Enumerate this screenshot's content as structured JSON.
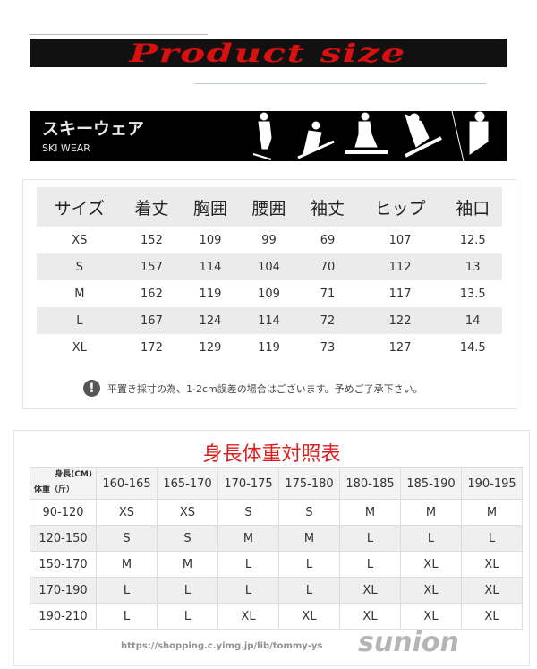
{
  "banner_title": "Product size",
  "ski_banner": {
    "jp": "スキーウェア",
    "en": "SKI WEAR"
  },
  "size_table": {
    "headers": [
      "サイズ",
      "着丈",
      "胸囲",
      "腰囲",
      "袖丈",
      "ヒップ",
      "袖口"
    ],
    "rows": [
      [
        "XS",
        "152",
        "109",
        "99",
        "69",
        "107",
        "12.5"
      ],
      [
        "S",
        "157",
        "114",
        "104",
        "70",
        "112",
        "13"
      ],
      [
        "M",
        "162",
        "119",
        "109",
        "71",
        "117",
        "13.5"
      ],
      [
        "L",
        "167",
        "124",
        "114",
        "72",
        "122",
        "14"
      ],
      [
        "XL",
        "172",
        "129",
        "119",
        "73",
        "127",
        "14.5"
      ]
    ]
  },
  "note": {
    "icon": "exclamation-icon",
    "text": "平置き採寸の為、1-2cm誤差の場合はございます。予めご了承下さい。"
  },
  "chart2": {
    "title": "身長体重対照表",
    "corner_height": "身長(CM)",
    "corner_weight": "体重（斤）",
    "height_ranges": [
      "160-165",
      "165-170",
      "170-175",
      "175-180",
      "180-185",
      "185-190",
      "190-195"
    ],
    "rows": [
      {
        "weight": "90-120",
        "sizes": [
          "XS",
          "XS",
          "S",
          "S",
          "M",
          "M",
          "M"
        ]
      },
      {
        "weight": "120-150",
        "sizes": [
          "S",
          "S",
          "M",
          "M",
          "L",
          "L",
          "L"
        ]
      },
      {
        "weight": "150-170",
        "sizes": [
          "M",
          "M",
          "L",
          "L",
          "L",
          "XL",
          "XL"
        ]
      },
      {
        "weight": "170-190",
        "sizes": [
          "L",
          "L",
          "L",
          "L",
          "XL",
          "XL",
          "XL"
        ]
      },
      {
        "weight": "190-210",
        "sizes": [
          "L",
          "L",
          "XL",
          "XL",
          "XL",
          "XL",
          "XL"
        ]
      }
    ]
  },
  "watermark": {
    "brand": "sunion",
    "url": "https://shopping.c.yimg.jp/lib/tommy-ys"
  }
}
